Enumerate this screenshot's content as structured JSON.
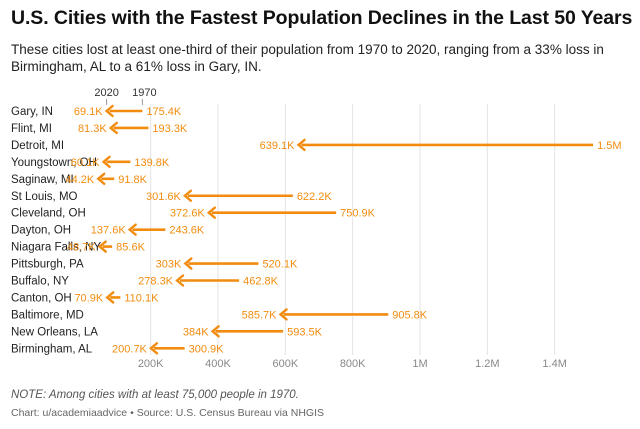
{
  "title": "U.S. Cities with the Fastest Population Declines in the Last 50 Years",
  "subtitle": "These cities lost at least one-third of their population from 1970 to 2020, ranging from a 33% loss in Birmingham, AL to a 61% loss in Gary, IN.",
  "note": "NOTE: Among cities with at least 75,000 people in 1970.",
  "credit": {
    "chart": "Chart: u/academiaadvice",
    "separator": "•",
    "source": "Source: U.S. Census Bureau via NHGIS"
  },
  "colors": {
    "accent": "#F28C0F",
    "grid": "#e3e3e3",
    "text": "#222222",
    "muted": "#888888"
  },
  "chart_data": {
    "type": "arrow",
    "legend": {
      "start_label": "1970",
      "end_label": "2020"
    },
    "xlim": [
      100000,
      1600000
    ],
    "xticks": [
      200000,
      400000,
      600000,
      800000,
      1000000,
      1200000,
      1400000
    ],
    "xtick_labels": [
      "200K",
      "400K",
      "600K",
      "800K",
      "1M",
      "1.2M",
      "1.4M"
    ],
    "rows": [
      {
        "city": "Gary, IN",
        "y1970": 175415,
        "y2020": 69093,
        "label1970": "175.4K",
        "label2020": "69.1K"
      },
      {
        "city": "Flint, MI",
        "y1970": 193317,
        "y2020": 81252,
        "label1970": "193.3K",
        "label2020": "81.3K"
      },
      {
        "city": "Detroit, MI",
        "y1970": 1514063,
        "y2020": 639111,
        "label1970": "1.5M",
        "label2020": "639.1K"
      },
      {
        "city": "Youngstown, OH",
        "y1970": 139788,
        "y2020": 60068,
        "label1970": "139.8K",
        "label2020": "60.1K"
      },
      {
        "city": "Saginaw, MI",
        "y1970": 91849,
        "y2020": 44202,
        "label1970": "91.8K",
        "label2020": "44.2K"
      },
      {
        "city": "St Louis, MO",
        "y1970": 622236,
        "y2020": 301578,
        "label1970": "622.2K",
        "label2020": "301.6K"
      },
      {
        "city": "Cleveland, OH",
        "y1970": 750903,
        "y2020": 372624,
        "label1970": "750.9K",
        "label2020": "372.6K"
      },
      {
        "city": "Dayton, OH",
        "y1970": 243601,
        "y2020": 137644,
        "label1970": "243.6K",
        "label2020": "137.6K"
      },
      {
        "city": "Niagara Falls, NY",
        "y1970": 85615,
        "y2020": 48671,
        "label1970": "85.6K",
        "label2020": "48.7K"
      },
      {
        "city": "Pittsburgh, PA",
        "y1970": 520117,
        "y2020": 302971,
        "label1970": "520.1K",
        "label2020": "303K"
      },
      {
        "city": "Buffalo, NY",
        "y1970": 462768,
        "y2020": 278349,
        "label1970": "462.8K",
        "label2020": "278.3K"
      },
      {
        "city": "Canton, OH",
        "y1970": 110053,
        "y2020": 70872,
        "label1970": "110.1K",
        "label2020": "70.9K"
      },
      {
        "city": "Baltimore, MD",
        "y1970": 905759,
        "y2020": 585708,
        "label1970": "905.8K",
        "label2020": "585.7K"
      },
      {
        "city": "New Orleans, LA",
        "y1970": 593471,
        "y2020": 383997,
        "label1970": "593.5K",
        "label2020": "384K"
      },
      {
        "city": "Birmingham, AL",
        "y1970": 300910,
        "y2020": 200733,
        "label1970": "300.9K",
        "label2020": "200.7K"
      }
    ]
  }
}
